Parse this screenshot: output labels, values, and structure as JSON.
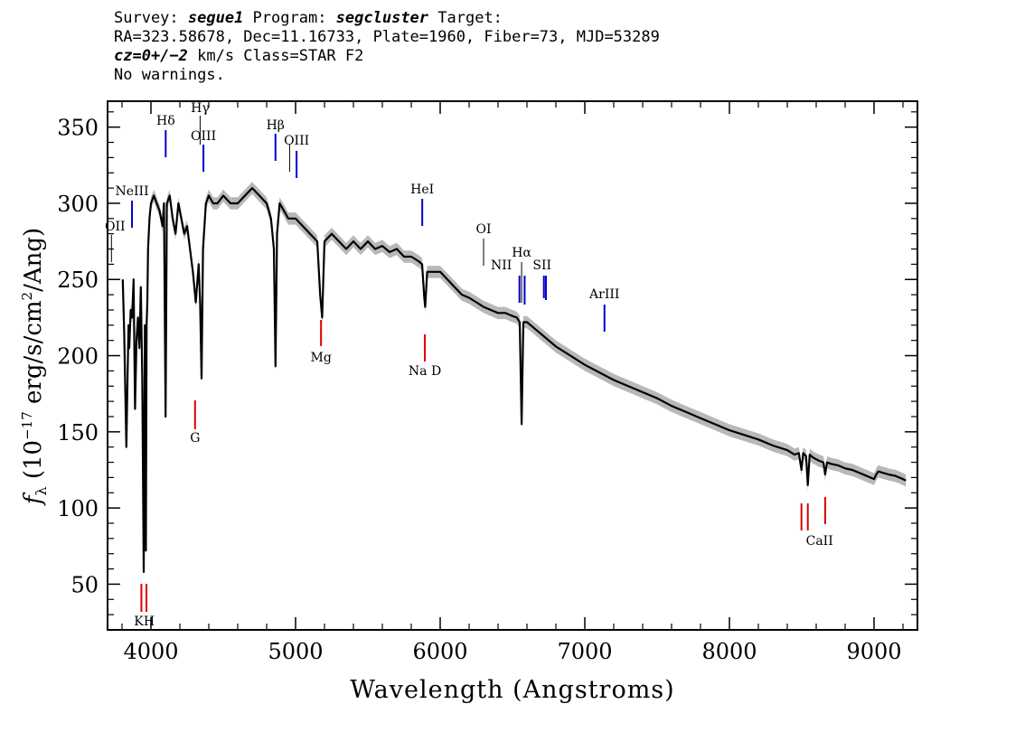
{
  "header": {
    "line1_a": "Survey: ",
    "survey": "segue1",
    "line1_b": " Program: ",
    "program": "segcluster",
    "line1_c": " Target:",
    "line2": "RA=323.58678, Dec=11.16733, Plate=1960, Fiber=73, MJD=53289",
    "cz": "cz=0+/−2",
    "line3_b": " km/s Class=STAR F2",
    "line4": "No warnings."
  },
  "chart_data": {
    "type": "line",
    "xlabel": "Wavelength (Angstroms)",
    "ylabel": "f_λ (10^-17 erg/s/cm^2/Ang)",
    "xlim": [
      3700,
      9300
    ],
    "ylim": [
      20,
      367
    ],
    "x_ticks": [
      4000,
      5000,
      6000,
      7000,
      8000,
      9000
    ],
    "y_ticks": [
      50,
      100,
      150,
      200,
      250,
      300,
      350
    ],
    "series": [
      {
        "color": "#000000",
        "x": [
          3805,
          3815,
          3830,
          3838,
          3845,
          3850,
          3860,
          3870,
          3880,
          3890,
          3900,
          3910,
          3920,
          3930,
          3940,
          3950,
          3958,
          3965,
          3970,
          3975,
          3980,
          3990,
          4000,
          4020,
          4040,
          4060,
          4080,
          4090,
          4101,
          4110,
          4130,
          4150,
          4170,
          4190,
          4210,
          4230,
          4250,
          4270,
          4290,
          4310,
          4330,
          4340,
          4350,
          4360,
          4380,
          4400,
          4430,
          4460,
          4500,
          4550,
          4600,
          4650,
          4700,
          4750,
          4800,
          4830,
          4850,
          4861,
          4872,
          4890,
          4920,
          4950,
          5000,
          5050,
          5100,
          5150,
          5170,
          5184,
          5200,
          5250,
          5300,
          5350,
          5400,
          5450,
          5500,
          5550,
          5600,
          5650,
          5700,
          5750,
          5800,
          5850,
          5875,
          5890,
          5896,
          5910,
          5950,
          6000,
          6050,
          6100,
          6150,
          6200,
          6250,
          6300,
          6350,
          6400,
          6450,
          6500,
          6530,
          6550,
          6563,
          6575,
          6600,
          6650,
          6700,
          6800,
          6900,
          7000,
          7100,
          7200,
          7300,
          7400,
          7500,
          7600,
          7700,
          7800,
          7900,
          8000,
          8100,
          8200,
          8300,
          8400,
          8450,
          8480,
          8498,
          8510,
          8530,
          8542,
          8555,
          8580,
          8620,
          8650,
          8662,
          8675,
          8700,
          8750,
          8800,
          8850,
          8900,
          8950,
          9000,
          9015,
          9030,
          9100,
          9150,
          9200,
          9220
        ],
        "y": [
          250,
          215,
          140,
          185,
          220,
          205,
          230,
          225,
          250,
          165,
          210,
          225,
          205,
          245,
          185,
          58,
          220,
          72,
          220,
          235,
          270,
          290,
          300,
          305,
          300,
          295,
          285,
          300,
          160,
          300,
          305,
          290,
          280,
          300,
          290,
          280,
          285,
          270,
          255,
          235,
          260,
          235,
          185,
          270,
          300,
          305,
          300,
          300,
          305,
          300,
          300,
          305,
          310,
          305,
          300,
          290,
          270,
          193,
          280,
          300,
          295,
          290,
          290,
          285,
          280,
          275,
          240,
          225,
          275,
          280,
          275,
          270,
          275,
          270,
          275,
          270,
          272,
          268,
          270,
          265,
          265,
          262,
          260,
          238,
          232,
          255,
          255,
          255,
          250,
          245,
          240,
          238,
          235,
          232,
          230,
          228,
          228,
          226,
          225,
          222,
          155,
          222,
          222,
          218,
          214,
          206,
          200,
          194,
          189,
          184,
          180,
          176,
          172,
          167,
          163,
          159,
          155,
          151,
          148,
          145,
          141,
          138,
          135,
          136,
          125,
          136,
          134,
          115,
          135,
          133,
          131,
          130,
          122,
          130,
          129,
          128,
          126,
          125,
          123,
          121,
          119,
          122,
          124,
          122,
          121,
          119,
          118
        ]
      }
    ],
    "error_band_color": "#b8b8b8",
    "emission_lines": [
      {
        "label": "OII",
        "x": 3727
      },
      {
        "label": "NeIII",
        "x": 3869
      },
      {
        "label": "Hδ",
        "x": 4102
      },
      {
        "label": "Hγ",
        "x": 4340
      },
      {
        "label": "OIII",
        "x": 4363
      },
      {
        "label": "Hβ",
        "x": 4861
      },
      {
        "label": "OIII",
        "x": 4959
      },
      {
        "label": "OIII",
        "x": 5007
      },
      {
        "label": "HeI",
        "x": 5876
      },
      {
        "label": "OI",
        "x": 6300
      },
      {
        "label": "NII",
        "x": 6548
      },
      {
        "label": "Hα",
        "x": 6563
      },
      {
        "label": "NII",
        "x": 6584
      },
      {
        "label": "SII",
        "x": 6717
      },
      {
        "label": "SII",
        "x": 6731
      },
      {
        "label": "ArIII",
        "x": 7136
      }
    ],
    "emission_line_color": "#0000cc",
    "absorption_lines": [
      {
        "label": "K",
        "x": 3934
      },
      {
        "label": "H",
        "x": 3969
      },
      {
        "label": "G",
        "x": 4305
      },
      {
        "label": "Mg",
        "x": 5176
      },
      {
        "label": "Na D",
        "x": 5894
      },
      {
        "label": "CaII",
        "x": 8498
      },
      {
        "label": "CaII",
        "x": 8542
      },
      {
        "label": "CaII",
        "x": 8662
      }
    ],
    "absorption_line_color": "#dd0000"
  }
}
